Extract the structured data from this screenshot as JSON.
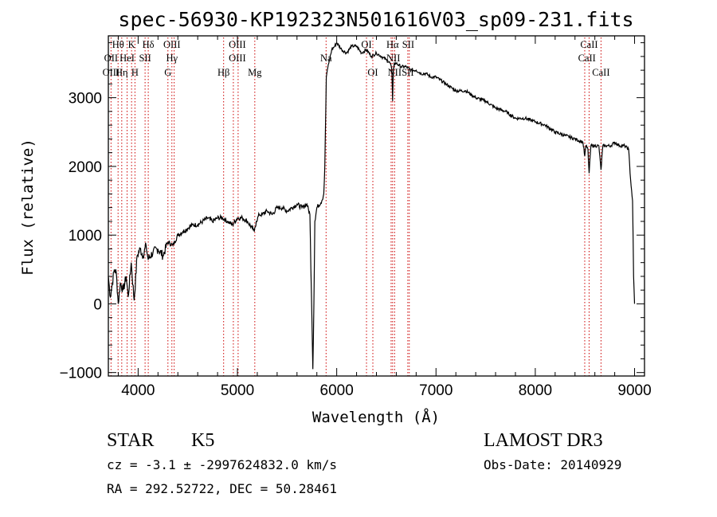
{
  "chart_data": {
    "type": "line",
    "title": "spec-56930-KP192323N501616V03_sp09-231.fits",
    "xlabel": "Wavelength (Å)",
    "ylabel": "Flux (relative)",
    "xlim": [
      3700,
      9100
    ],
    "ylim": [
      -1050,
      3900
    ],
    "xticks": [
      4000,
      5000,
      6000,
      7000,
      8000,
      9000
    ],
    "xtick_labels": [
      "4000",
      "5000",
      "6000",
      "7000",
      "8000",
      "9000"
    ],
    "yticks": [
      -1000,
      0,
      1000,
      2000,
      3000
    ],
    "ytick_labels": [
      "−1000",
      "0",
      "1000",
      "2000",
      "3000"
    ],
    "series": [
      {
        "name": "flux",
        "x": [
          3700,
          3720,
          3740,
          3760,
          3780,
          3800,
          3820,
          3850,
          3880,
          3900,
          3930,
          3960,
          3990,
          4020,
          4050,
          4080,
          4100,
          4150,
          4200,
          4250,
          4300,
          4350,
          4400,
          4450,
          4500,
          4550,
          4600,
          4650,
          4700,
          4750,
          4800,
          4850,
          4900,
          4950,
          5000,
          5050,
          5100,
          5150,
          5170,
          5190,
          5220,
          5250,
          5300,
          5350,
          5400,
          5450,
          5500,
          5550,
          5600,
          5650,
          5700,
          5730,
          5750,
          5760,
          5770,
          5780,
          5800,
          5850,
          5870,
          5880,
          5890,
          5895,
          5905,
          5920,
          5950,
          5980,
          6000,
          6050,
          6100,
          6150,
          6200,
          6250,
          6300,
          6350,
          6400,
          6450,
          6500,
          6540,
          6555,
          6563,
          6570,
          6580,
          6600,
          6650,
          6700,
          6750,
          6800,
          6850,
          6900,
          6950,
          7000,
          7100,
          7200,
          7300,
          7400,
          7500,
          7600,
          7700,
          7800,
          7900,
          8000,
          8100,
          8200,
          8300,
          8400,
          8480,
          8498,
          8510,
          8530,
          8542,
          8560,
          8600,
          8640,
          8662,
          8680,
          8720,
          8760,
          8800,
          8850,
          8900,
          8940,
          8960,
          8980,
          8990,
          9000
        ],
        "y": [
          400,
          100,
          300,
          500,
          450,
          0,
          300,
          200,
          400,
          100,
          600,
          50,
          700,
          800,
          700,
          850,
          650,
          750,
          800,
          700,
          900,
          850,
          1000,
          1050,
          1100,
          1150,
          1150,
          1200,
          1250,
          1200,
          1250,
          1250,
          1200,
          1150,
          1250,
          1250,
          1200,
          1100,
          1050,
          1200,
          1300,
          1300,
          1350,
          1300,
          1400,
          1400,
          1350,
          1400,
          1450,
          1400,
          1450,
          1300,
          -200,
          -950,
          0,
          1200,
          1400,
          1500,
          1600,
          2000,
          2800,
          3300,
          3400,
          3500,
          3700,
          3750,
          3800,
          3700,
          3650,
          3750,
          3750,
          3650,
          3700,
          3600,
          3650,
          3600,
          3550,
          3500,
          3400,
          2950,
          3400,
          3500,
          3500,
          3450,
          3450,
          3400,
          3400,
          3350,
          3350,
          3300,
          3300,
          3200,
          3100,
          3100,
          3000,
          2950,
          2850,
          2800,
          2700,
          2700,
          2650,
          2600,
          2500,
          2450,
          2400,
          2350,
          2150,
          2300,
          2250,
          1900,
          2300,
          2300,
          2300,
          1950,
          2300,
          2300,
          2300,
          2350,
          2300,
          2300,
          2250,
          1800,
          1500,
          400,
          0
        ]
      }
    ],
    "spectral_lines": [
      {
        "label": "Hθ",
        "wavelength": 3798,
        "row": 0
      },
      {
        "label": "K",
        "wavelength": 3934,
        "row": 0
      },
      {
        "label": "Hδ",
        "wavelength": 4102,
        "row": 0
      },
      {
        "label": "OIII",
        "wavelength": 4340,
        "row": 0
      },
      {
        "label": "OIII",
        "wavelength": 4999,
        "row": 0
      },
      {
        "label": "OI",
        "wavelength": 6300,
        "row": 0
      },
      {
        "label": "Hα",
        "wavelength": 6563,
        "row": 0
      },
      {
        "label": "SII",
        "wavelength": 6720,
        "row": 0
      },
      {
        "label": "CaII",
        "wavelength": 8542,
        "row": 0
      },
      {
        "label": "OII",
        "wavelength": 3727,
        "row": 1
      },
      {
        "label": "HeI",
        "wavelength": 3889,
        "row": 1
      },
      {
        "label": "SII",
        "wavelength": 4070,
        "row": 1
      },
      {
        "label": "Hγ",
        "wavelength": 4340,
        "row": 1
      },
      {
        "label": "OIII",
        "wavelength": 4999,
        "row": 1
      },
      {
        "label": "Na",
        "wavelength": 5893,
        "row": 1
      },
      {
        "label": "NII",
        "wavelength": 6570,
        "row": 1
      },
      {
        "label": "CaII",
        "wavelength": 8520,
        "row": 1
      },
      {
        "label": "OIII",
        "wavelength": 3727,
        "row": 2
      },
      {
        "label": "Hη",
        "wavelength": 3835,
        "row": 2
      },
      {
        "label": "H",
        "wavelength": 3968,
        "row": 2
      },
      {
        "label": "G",
        "wavelength": 4300,
        "row": 2
      },
      {
        "label": "Hβ",
        "wavelength": 4861,
        "row": 2
      },
      {
        "label": "Mg",
        "wavelength": 5175,
        "row": 2
      },
      {
        "label": "OI",
        "wavelength": 6364,
        "row": 2
      },
      {
        "label": "NII",
        "wavelength": 6583,
        "row": 2
      },
      {
        "label": "SII",
        "wavelength": 6716,
        "row": 2
      },
      {
        "label": "CaII",
        "wavelength": 8662,
        "row": 2
      }
    ],
    "line_markers": [
      3727,
      3798,
      3835,
      3889,
      3934,
      3968,
      4070,
      4102,
      4300,
      4340,
      4363,
      4861,
      4959,
      5007,
      5175,
      5893,
      6300,
      6364,
      6548,
      6563,
      6583,
      6716,
      6731,
      8498,
      8542,
      8662
    ],
    "grid": false
  },
  "info": {
    "object_class": "STAR",
    "subclass": "K5",
    "survey": "LAMOST DR3",
    "redshift": "cz = -3.1 ± -2997624832.0 km/s",
    "obs_date": "Obs-Date: 20140929",
    "coords": "RA = 292.52722, DEC =  50.28461"
  },
  "colors": {
    "axes": "#000000",
    "spectrum": "#000000",
    "line_markers": "#cc0000"
  }
}
